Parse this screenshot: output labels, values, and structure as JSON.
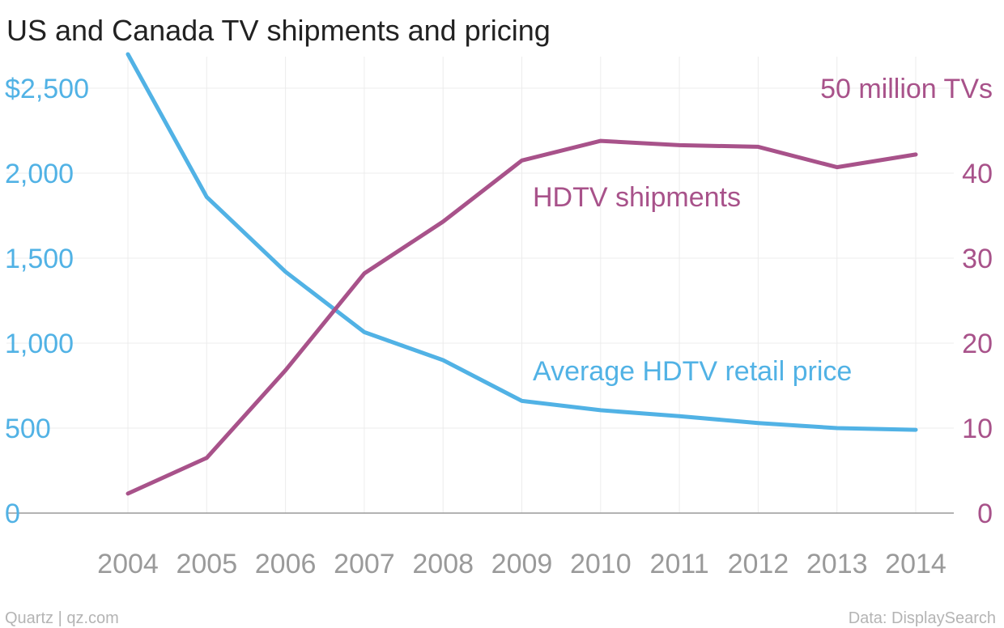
{
  "title": "US and Canada TV shipments and pricing",
  "footer": {
    "source_left": "Quartz | qz.com",
    "source_right": "Data: DisplaySearch"
  },
  "colors": {
    "price": "#51b2e5",
    "shipments": "#a8528a",
    "grid": "#ececec",
    "axis_text": "#9a9a9a"
  },
  "chart_data": {
    "type": "line",
    "title": "US and Canada TV shipments and pricing",
    "categories": [
      "2004",
      "2005",
      "2006",
      "2007",
      "2008",
      "2009",
      "2010",
      "2011",
      "2012",
      "2013",
      "2014"
    ],
    "x_tick_labels": [
      "2004",
      "2005",
      "2006",
      "2007",
      "2008",
      "2009",
      "2010",
      "2011",
      "2012",
      "2013",
      "2014"
    ],
    "left_axis": {
      "ylim": [
        0,
        2700
      ],
      "ticks": [
        0,
        500,
        1000,
        1500,
        2000,
        2500
      ],
      "tick_labels": [
        "0",
        "500",
        "1,000",
        "1,500",
        "2,000",
        "$2,500"
      ]
    },
    "right_axis": {
      "ylim": [
        0,
        54
      ],
      "ticks": [
        0,
        10,
        20,
        30,
        40,
        50
      ],
      "tick_labels": [
        "0",
        "10",
        "20",
        "30",
        "40",
        "50 million TVs"
      ]
    },
    "series": [
      {
        "name": "Average HDTV retail price",
        "axis": "left",
        "values": [
          2700,
          1860,
          1420,
          1065,
          900,
          660,
          605,
          570,
          530,
          500,
          490
        ]
      },
      {
        "name": "HDTV shipments",
        "axis": "right",
        "values": [
          2.3,
          6.5,
          16.8,
          28.2,
          34.3,
          41.5,
          43.8,
          43.3,
          43.1,
          40.7,
          42.2
        ]
      }
    ],
    "grid": true,
    "legend": "inline labels"
  }
}
